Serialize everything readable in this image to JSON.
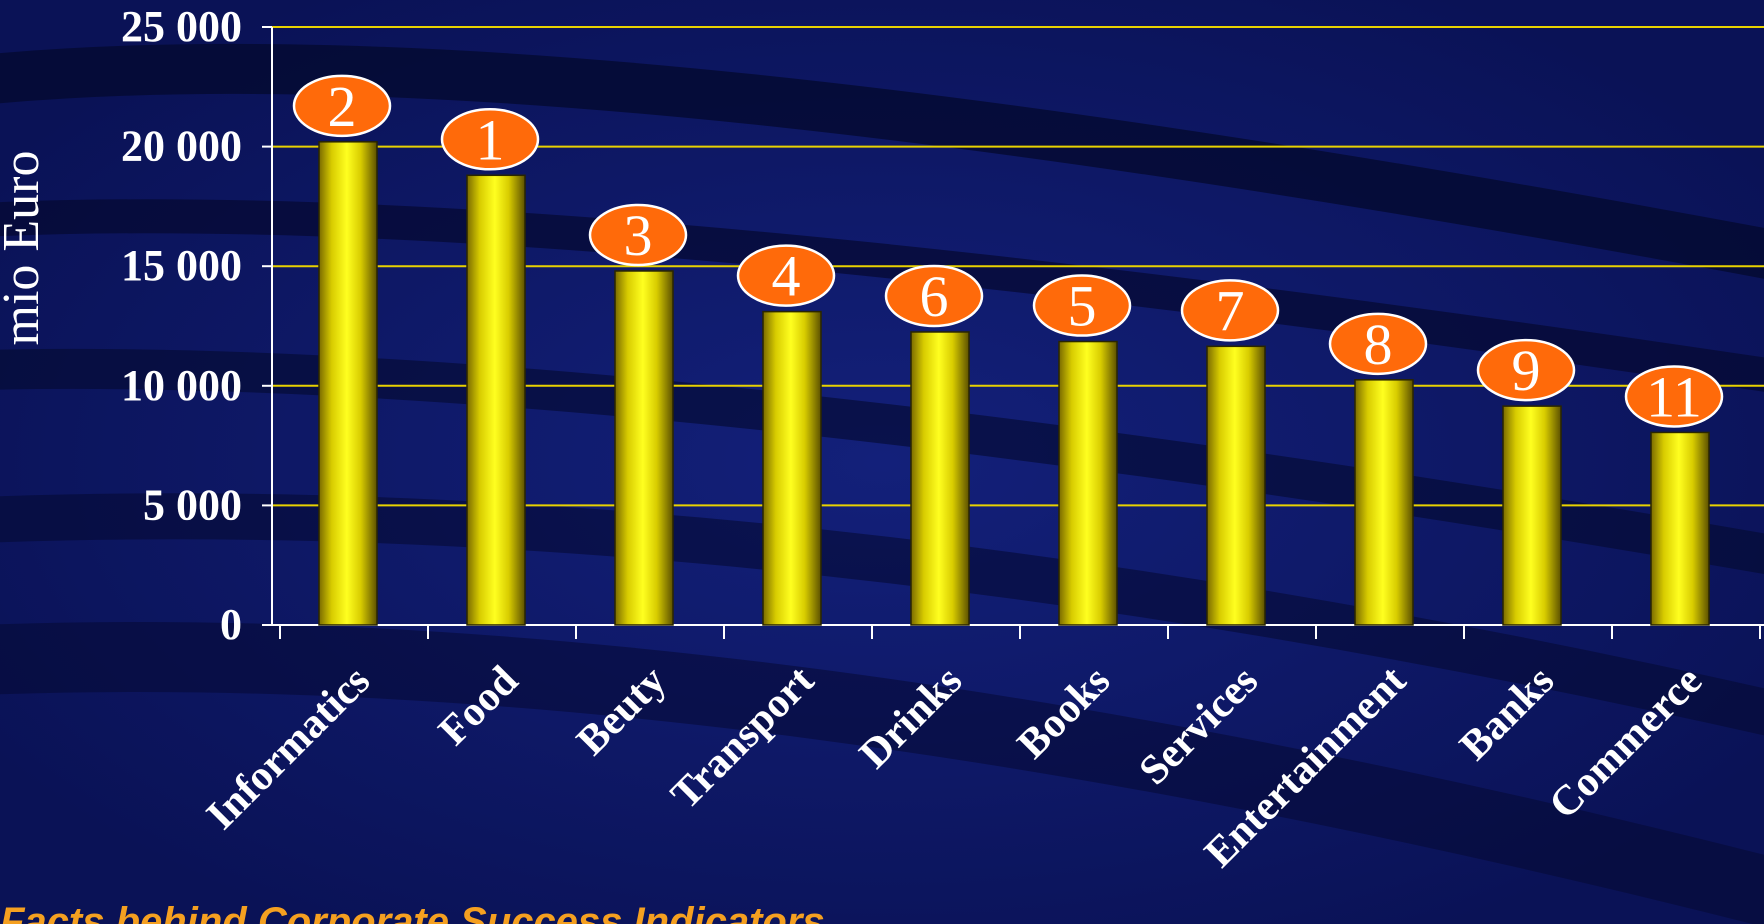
{
  "chart_data": {
    "type": "bar",
    "title": "",
    "xlabel": "",
    "ylabel": "mio Euro",
    "ylim": [
      0,
      25000
    ],
    "yticks": [
      0,
      5000,
      10000,
      15000,
      20000,
      25000
    ],
    "ytick_labels": [
      "0",
      "5 000",
      "10 000",
      "15 000",
      "20 000",
      "25 000"
    ],
    "grid": true,
    "categories": [
      "Informatics",
      "Food",
      "Beuty",
      "Transport",
      "Drinks",
      "Books",
      "Services",
      "Entertainment",
      "Banks",
      "Commerce"
    ],
    "values": [
      20200,
      18800,
      14800,
      13100,
      12250,
      11850,
      11650,
      10250,
      9150,
      8050
    ],
    "rank_labels": [
      "2",
      "1",
      "3",
      "4",
      "6",
      "5",
      "7",
      "8",
      "9",
      "11"
    ],
    "colors": {
      "background": "#0a1256",
      "bar": "#f2ee0a",
      "gridline": "#e8d200",
      "rank_badge": "#ff6a0a",
      "footer_text": "#f5a020"
    }
  },
  "footer": {
    "text": "Facts behind Corporate Success Indicators"
  }
}
